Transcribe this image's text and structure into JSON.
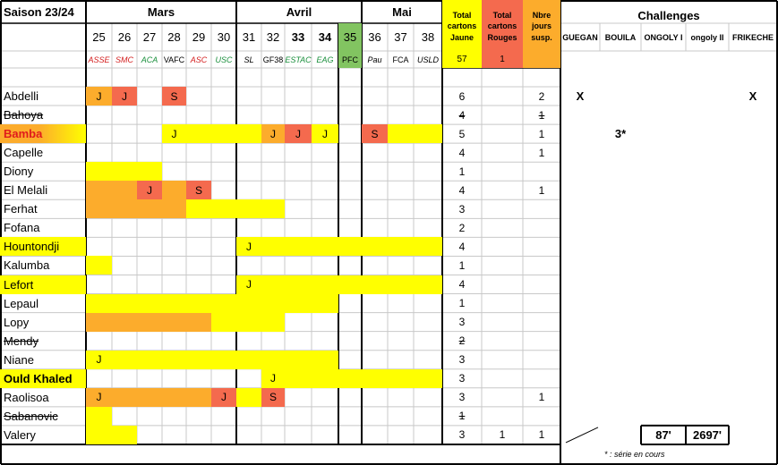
{
  "title": "Saison 23/24",
  "months": [
    "Mars",
    "Avril",
    "Mai"
  ],
  "challenges_title": "Challenges",
  "rounds": [
    {
      "n": "25",
      "opp": "ASSE",
      "oc": "#d42020",
      "hl": false
    },
    {
      "n": "26",
      "opp": "SMC",
      "oc": "#d42020",
      "hl": false
    },
    {
      "n": "27",
      "opp": "ACA",
      "oc": "#1a8f3c",
      "hl": false
    },
    {
      "n": "28",
      "opp": "VAFC",
      "oc": "#000000",
      "hl": false
    },
    {
      "n": "29",
      "opp": "ASC",
      "oc": "#d42020",
      "hl": false
    },
    {
      "n": "30",
      "opp": "USC",
      "oc": "#1a8f3c",
      "hl": false
    },
    {
      "n": "31",
      "opp": "SL",
      "oc": "#000000",
      "hl": false
    },
    {
      "n": "32",
      "opp": "GF38",
      "oc": "#000000",
      "hl": false
    },
    {
      "n": "33",
      "opp": "ESTAC",
      "oc": "#1a8f3c",
      "hl": false,
      "bold": true
    },
    {
      "n": "34",
      "opp": "EAG",
      "oc": "#1a8f3c",
      "hl": false,
      "bold": true
    },
    {
      "n": "35",
      "opp": "PFC",
      "oc": "#000000",
      "hl": true
    },
    {
      "n": "36",
      "opp": "Pau",
      "oc": "#000000",
      "hl": false
    },
    {
      "n": "37",
      "opp": "FCA",
      "oc": "#000000",
      "hl": false
    },
    {
      "n": "38",
      "opp": "USLD",
      "oc": "#000000",
      "hl": false
    }
  ],
  "totals_headers": {
    "yellow": "Total cartons Jaune",
    "red": "Total cartons Rouges",
    "susp": "Nbre jours susp."
  },
  "totals": {
    "yellow": "57",
    "red": "1"
  },
  "challenge_names": [
    "GUEGAN",
    "BOUILA",
    "ONGOLY I",
    "ongoly II",
    "FRIKECHE"
  ],
  "challenge_values": [
    "87'",
    "2697'"
  ],
  "footnote": "* : série en cours",
  "colors": {
    "yellow": "#ffff00",
    "orange": "#fcac2c",
    "red": "#f46a4e",
    "green": "#82c461",
    "bamba_grad_a": "#ff2020",
    "bamba_grad_b": "#ffffff"
  },
  "players": [
    {
      "name": "Abdelli",
      "yellow": "6",
      "red": "",
      "susp": "2",
      "strike": false,
      "marks": {
        "25": "J",
        "26": "J",
        "28": "S"
      },
      "fill": {
        "25": "orange",
        "26": "red",
        "28": "red"
      },
      "ch": [
        "X",
        "",
        "",
        "",
        "X"
      ]
    },
    {
      "name": "Bahoya",
      "yellow": "4",
      "red": "",
      "susp": "1",
      "strike": true,
      "marks": {},
      "fill": {},
      "ch": [
        "",
        "",
        "",
        "",
        ""
      ]
    },
    {
      "name": "Bamba",
      "yellow": "5",
      "red": "",
      "susp": "1",
      "strike": false,
      "nameStyle": "bamba",
      "marks": {
        "28": "J",
        "32": "J",
        "33": "J",
        "34": "J",
        "36": "S"
      },
      "fill": {
        "28": "yellow",
        "29": "yellow",
        "30": "yellow",
        "31": "yellow",
        "32": "orange",
        "33": "red",
        "34": "yellow",
        "36": "red",
        "37": "yellow",
        "38": "yellow"
      },
      "ch": [
        "",
        "3*",
        "",
        "",
        ""
      ]
    },
    {
      "name": "Capelle",
      "yellow": "4",
      "red": "",
      "susp": "1",
      "strike": false,
      "marks": {},
      "fill": {},
      "ch": [
        "",
        "",
        "",
        "",
        ""
      ]
    },
    {
      "name": "Diony",
      "yellow": "1",
      "red": "",
      "susp": "",
      "strike": false,
      "marks": {},
      "fill": {
        "25": "yellow",
        "26": "yellow",
        "27": "yellow"
      },
      "ch": [
        "",
        "",
        "",
        "",
        ""
      ]
    },
    {
      "name": "El Melali",
      "yellow": "4",
      "red": "",
      "susp": "1",
      "strike": false,
      "marks": {
        "27": "J",
        "29": "S"
      },
      "fill": {
        "25": "orange",
        "26": "orange",
        "27": "red",
        "28": "orange",
        "29": "red"
      },
      "ch": [
        "",
        "",
        "",
        "",
        ""
      ]
    },
    {
      "name": "Ferhat",
      "yellow": "3",
      "red": "",
      "susp": "",
      "strike": false,
      "marks": {},
      "fill": {
        "25": "orange",
        "26": "orange",
        "27": "orange",
        "28": "orange",
        "29": "yellow",
        "30": "yellow",
        "31": "yellow",
        "32": "yellow"
      },
      "ch": [
        "",
        "",
        "",
        "",
        ""
      ]
    },
    {
      "name": "Fofana",
      "yellow": "2",
      "red": "",
      "susp": "",
      "strike": false,
      "marks": {},
      "fill": {},
      "ch": [
        "",
        "",
        "",
        "",
        ""
      ]
    },
    {
      "name": "Hountondji",
      "yellow": "4",
      "red": "",
      "susp": "",
      "strike": false,
      "nameFill": "yellow",
      "marks": {
        "31": "J"
      },
      "fill": {
        "31": "yellow",
        "32": "yellow",
        "33": "yellow",
        "34": "yellow",
        "35": "yellow",
        "36": "yellow",
        "37": "yellow",
        "38": "yellow"
      },
      "ch": [
        "",
        "",
        "",
        "",
        ""
      ]
    },
    {
      "name": "Kalumba",
      "yellow": "1",
      "red": "",
      "susp": "",
      "strike": false,
      "marks": {},
      "fill": {
        "25": "yellow"
      },
      "ch": [
        "",
        "",
        "",
        "",
        ""
      ]
    },
    {
      "name": "Lefort",
      "yellow": "4",
      "red": "",
      "susp": "",
      "strike": false,
      "nameFill": "yellow",
      "marks": {
        "31": "J"
      },
      "fill": {
        "31": "yellow",
        "32": "yellow",
        "33": "yellow",
        "34": "yellow",
        "35": "yellow",
        "36": "yellow",
        "37": "yellow",
        "38": "yellow"
      },
      "ch": [
        "",
        "",
        "",
        "",
        ""
      ]
    },
    {
      "name": "Lepaul",
      "yellow": "1",
      "red": "",
      "susp": "",
      "strike": false,
      "marks": {},
      "fill": {
        "25": "yellow",
        "26": "yellow",
        "27": "yellow",
        "28": "yellow",
        "29": "yellow",
        "30": "yellow",
        "31": "yellow",
        "32": "yellow",
        "33": "yellow",
        "34": "yellow"
      },
      "ch": [
        "",
        "",
        "",
        "",
        ""
      ]
    },
    {
      "name": "Lopy",
      "yellow": "3",
      "red": "",
      "susp": "",
      "strike": false,
      "marks": {},
      "fill": {
        "25": "orange",
        "26": "orange",
        "27": "orange",
        "28": "orange",
        "29": "orange",
        "30": "yellow",
        "31": "yellow",
        "32": "yellow"
      },
      "ch": [
        "",
        "",
        "",
        "",
        ""
      ]
    },
    {
      "name": "Mendy",
      "yellow": "2",
      "red": "",
      "susp": "",
      "strike": true,
      "marks": {},
      "fill": {},
      "ch": [
        "",
        "",
        "",
        "",
        ""
      ]
    },
    {
      "name": "Niane",
      "yellow": "3",
      "red": "",
      "susp": "",
      "strike": false,
      "marks": {
        "25": "J"
      },
      "fill": {
        "25": "yellow",
        "26": "yellow",
        "27": "yellow",
        "28": "yellow",
        "29": "yellow",
        "30": "yellow",
        "31": "yellow",
        "32": "yellow",
        "33": "yellow",
        "34": "yellow"
      },
      "ch": [
        "",
        "",
        "",
        "",
        ""
      ]
    },
    {
      "name": "Ould Khaled",
      "yellow": "3",
      "red": "",
      "susp": "",
      "strike": false,
      "nameFill": "yellow",
      "nameBold": true,
      "marks": {
        "32": "J"
      },
      "fill": {
        "32": "yellow",
        "33": "yellow",
        "34": "yellow",
        "35": "yellow",
        "36": "yellow",
        "37": "yellow",
        "38": "yellow"
      },
      "ch": [
        "",
        "",
        "",
        "",
        ""
      ]
    },
    {
      "name": "Raolisoa",
      "yellow": "3",
      "red": "",
      "susp": "1",
      "strike": false,
      "marks": {
        "25": "J",
        "30": "J",
        "32": "S"
      },
      "fill": {
        "25": "orange",
        "26": "orange",
        "27": "orange",
        "28": "orange",
        "29": "orange",
        "30": "red",
        "31": "yellow",
        "32": "red"
      },
      "ch": [
        "",
        "",
        "",
        "",
        ""
      ]
    },
    {
      "name": "Sabanovic",
      "yellow": "1",
      "red": "",
      "susp": "",
      "strike": true,
      "marks": {},
      "fill": {
        "25": "yellow"
      },
      "ch": [
        "",
        "",
        "",
        "",
        ""
      ]
    },
    {
      "name": "Valery",
      "yellow": "3",
      "red": "1",
      "susp": "1",
      "strike": false,
      "marks": {},
      "fill": {
        "25": "yellow",
        "26": "yellow"
      },
      "ch": [
        "",
        "",
        "",
        "",
        ""
      ]
    }
  ]
}
